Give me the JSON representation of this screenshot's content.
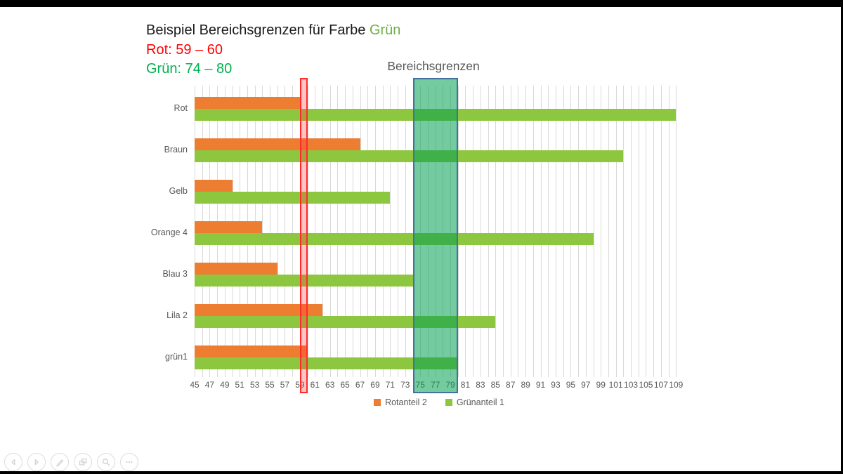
{
  "slide": {
    "title_prefix": "Beispiel Bereichsgrenzen für Farbe ",
    "title_highlight": "Grün",
    "subtitle_red": "Rot: 59 – 60",
    "subtitle_green": "Grün: 74 – 80"
  },
  "colors": {
    "title_text": "#1a1a1a",
    "title_highlight": "#70AD47",
    "subtitle_red": "#FF0000",
    "subtitle_green": "#00B050",
    "series_red": "#ED7D31",
    "series_green": "#8DC63F",
    "band_red_border": "#FF2B2B",
    "band_red_fill": "rgba(255,60,60,0.30)",
    "band_green_border": "#41719C",
    "band_green_fill": "rgba(0,160,80,0.55)",
    "axis_text": "#595959",
    "gridline": "#D9D9D9"
  },
  "chart_data": {
    "type": "bar",
    "orientation": "horizontal",
    "categories": [
      "Rot",
      "Braun",
      "Gelb",
      "Orange 4",
      "Blau 3",
      "Lila 2",
      "grün1"
    ],
    "series": [
      {
        "name": "Rotanteil 2",
        "color_key": "series_red",
        "values": [
          59,
          67,
          50,
          54,
          56,
          62,
          60
        ]
      },
      {
        "name": "Grünanteil 1",
        "color_key": "series_green",
        "values": [
          109,
          102,
          71,
          98,
          74,
          85,
          80
        ]
      }
    ],
    "xlim": [
      45,
      110
    ],
    "ticks": {
      "label_min": 45,
      "label_max": 109,
      "label_step": 2,
      "grid_step": 1
    },
    "grid": true,
    "legend_position": "bottom",
    "bands": [
      {
        "name": "red-band",
        "from": 59,
        "to": 60,
        "label": "",
        "fill_key": "band_red_fill",
        "border_key": "band_red_border"
      },
      {
        "name": "green-band",
        "from": 74,
        "to": 80,
        "label": "Bereichsgrenzen",
        "fill_key": "band_green_fill",
        "border_key": "band_green_border"
      }
    ],
    "legend": [
      "Rotanteil 2",
      "Grünanteil 1"
    ]
  },
  "nav": {
    "buttons": [
      "previous",
      "next",
      "pen",
      "slide-overview",
      "zoom",
      "more"
    ]
  }
}
